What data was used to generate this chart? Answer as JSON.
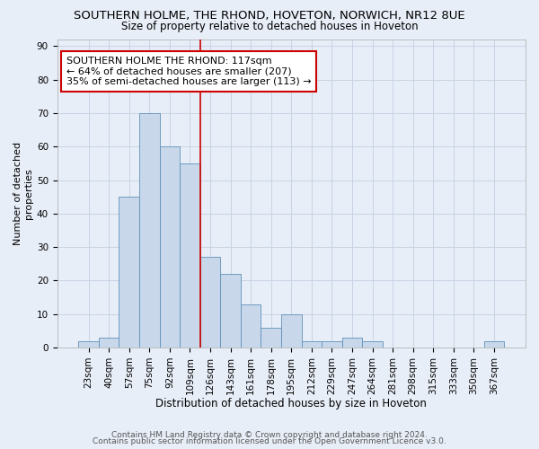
{
  "title": "SOUTHERN HOLME, THE RHOND, HOVETON, NORWICH, NR12 8UE",
  "subtitle": "Size of property relative to detached houses in Hoveton",
  "xlabel": "Distribution of detached houses by size in Hoveton",
  "ylabel": "Number of detached\nproperties",
  "bar_labels": [
    "23sqm",
    "40sqm",
    "57sqm",
    "75sqm",
    "92sqm",
    "109sqm",
    "126sqm",
    "143sqm",
    "161sqm",
    "178sqm",
    "195sqm",
    "212sqm",
    "229sqm",
    "247sqm",
    "264sqm",
    "281sqm",
    "298sqm",
    "315sqm",
    "333sqm",
    "350sqm",
    "367sqm"
  ],
  "bar_values": [
    2,
    3,
    45,
    70,
    60,
    55,
    27,
    22,
    13,
    6,
    10,
    2,
    2,
    3,
    2,
    0,
    0,
    0,
    0,
    0,
    2
  ],
  "bar_color": "#c8d8ea",
  "bar_edgecolor": "#6090b8",
  "red_line_x": 6.0,
  "red_line_color": "#cc0000",
  "annotation_text": "SOUTHERN HOLME THE RHOND: 117sqm\n← 64% of detached houses are smaller (207)\n35% of semi-detached houses are larger (113) →",
  "annotation_box_color": "white",
  "annotation_box_edgecolor": "#cc0000",
  "annotation_fontsize": 8,
  "ylim": [
    0,
    92
  ],
  "yticks": [
    0,
    10,
    20,
    30,
    40,
    50,
    60,
    70,
    80,
    90
  ],
  "grid_color": "#c8d4e4",
  "background_color": "#e8eef8",
  "footer_line1": "Contains HM Land Registry data © Crown copyright and database right 2024.",
  "footer_line2": "Contains public sector information licensed under the Open Government Licence v3.0.",
  "title_fontsize": 9.5,
  "subtitle_fontsize": 8.5,
  "xlabel_fontsize": 8.5,
  "ylabel_fontsize": 8,
  "tick_fontsize": 7.5,
  "footer_fontsize": 6.5
}
